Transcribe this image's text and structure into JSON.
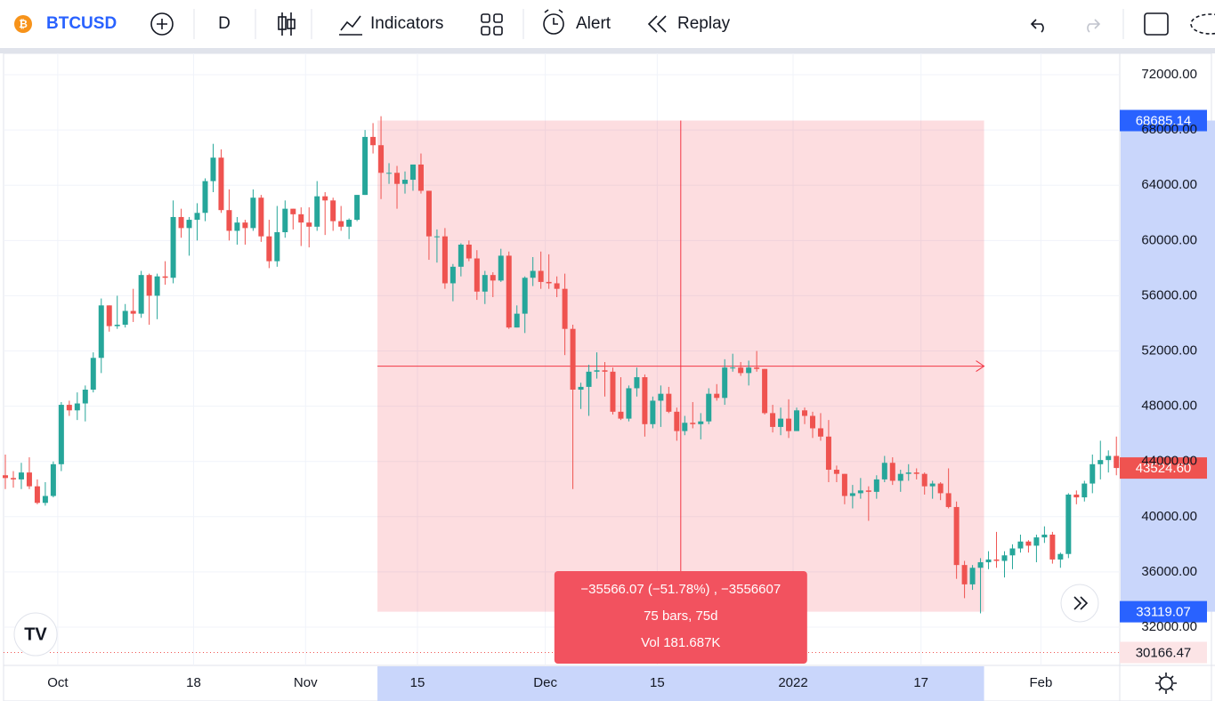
{
  "toolbar": {
    "symbol": "BTCUSD",
    "interval": "D",
    "indicators": "Indicators",
    "alert": "Alert",
    "replay": "Replay"
  },
  "chart_data": {
    "type": "candlestick",
    "open": [
      43000,
      42800,
      42700,
      43200,
      42200,
      41000,
      41500,
      43800,
      48100,
      47700,
      48200,
      49200,
      51500,
      55300,
      53800,
      53900,
      54900,
      54700,
      57500,
      56000,
      57400,
      57300,
      61700,
      60900,
      61500,
      62000,
      64300,
      66000,
      62200,
      60700,
      61300,
      60900,
      63100,
      60300,
      58500,
      60600,
      62300,
      61900,
      61300,
      61000,
      63200,
      62900,
      61400,
      61000,
      61500,
      63300,
      67500,
      66900,
      64900,
      64900,
      64100,
      64400,
      65500,
      63600,
      60300,
      60300,
      56900,
      58100,
      59700,
      58700,
      56300,
      57500,
      57100,
      58900,
      53700,
      54700,
      57300,
      57800,
      57000,
      56900,
      56500,
      53600,
      49200,
      49400,
      50500,
      50600,
      50500,
      47600,
      47100,
      49300,
      50100,
      46700,
      48400,
      48900,
      47600,
      46200,
      46800,
      46700,
      46900,
      48900,
      48600,
      50800,
      50800,
      50400,
      50800,
      50700,
      47500,
      46500,
      47100,
      46200,
      47700,
      47300,
      46400,
      45800,
      43400,
      43100,
      41500,
      41700,
      41900,
      41800,
      42700,
      43900,
      42600,
      43100,
      43200,
      43100,
      42200,
      42400,
      41700,
      40700,
      36500,
      35100,
      36300,
      36700,
      36900,
      36800,
      37200,
      37700,
      38200,
      37900,
      38500,
      38700,
      36900,
      37300,
      41600,
      41400,
      42400,
      43800,
      44100,
      44400
    ],
    "high": [
      44500,
      43300,
      43900,
      44300,
      42700,
      42500,
      44000,
      48300,
      48400,
      49000,
      49500,
      51900,
      55800,
      55300,
      56000,
      55400,
      56500,
      57800,
      57600,
      57600,
      58500,
      62900,
      62300,
      61700,
      62700,
      64500,
      67000,
      66600,
      63700,
      61700,
      61500,
      63700,
      63300,
      61500,
      62500,
      62900,
      62300,
      62400,
      62400,
      64300,
      63500,
      63100,
      62500,
      61600,
      63300,
      68000,
      68500,
      69000,
      65600,
      65400,
      65000,
      65500,
      66300,
      63600,
      60800,
      60900,
      58300,
      59800,
      60000,
      59300,
      57800,
      57700,
      59400,
      59200,
      55300,
      57400,
      58800,
      59200,
      59000,
      57400,
      57600,
      53900,
      49700,
      51000,
      51900,
      51200,
      50800,
      50100,
      49500,
      50800,
      50300,
      48700,
      49500,
      49400,
      47900,
      47300,
      48300,
      47500,
      49300,
      49600,
      51400,
      51800,
      51200,
      51300,
      52000,
      50700,
      48100,
      47900,
      48500,
      47900,
      47900,
      47600,
      47500,
      47000,
      43700,
      43100,
      42300,
      42800,
      42200,
      43000,
      44400,
      44300,
      43400,
      43800,
      43500,
      43200,
      42600,
      42500,
      43500,
      41100,
      36800,
      36500,
      37000,
      37500,
      38900,
      37500,
      38000,
      38700,
      38300,
      38700,
      39300,
      38900,
      37400,
      41700,
      41900,
      42600,
      44500,
      45500,
      44800,
      45800
    ],
    "low": [
      42000,
      42100,
      42000,
      42000,
      40900,
      40800,
      41400,
      43300,
      47300,
      47000,
      46900,
      49000,
      50400,
      53400,
      53600,
      53700,
      54100,
      54400,
      53900,
      54300,
      56800,
      56900,
      60200,
      58900,
      60000,
      61400,
      63500,
      62000,
      60000,
      59700,
      59700,
      60700,
      59900,
      58000,
      58100,
      60200,
      60800,
      59600,
      59500,
      60700,
      60400,
      60700,
      60700,
      60100,
      61400,
      63300,
      66300,
      63000,
      64100,
      62300,
      63400,
      63600,
      63400,
      58600,
      58400,
      56500,
      55600,
      57400,
      58500,
      55700,
      55400,
      55900,
      57000,
      53600,
      53700,
      53300,
      56700,
      56500,
      56500,
      55900,
      51700,
      42000,
      47800,
      47300,
      50000,
      48700,
      47400,
      47000,
      46900,
      48700,
      45800,
      46400,
      46500,
      47500,
      45500,
      45900,
      46400,
      45600,
      46700,
      48400,
      48100,
      50500,
      50200,
      49500,
      50500,
      47400,
      46100,
      45900,
      45700,
      46200,
      46700,
      45700,
      45500,
      42500,
      42500,
      40900,
      40600,
      41300,
      39700,
      41300,
      42500,
      42300,
      41800,
      42600,
      42700,
      41600,
      41300,
      41200,
      40600,
      35500,
      34100,
      34700,
      33000,
      36200,
      36300,
      35600,
      36200,
      37400,
      37400,
      36700,
      38100,
      36600,
      36300,
      37000,
      40900,
      41100,
      41700,
      42700,
      43200,
      43000
    ],
    "close": [
      42800,
      42700,
      43200,
      42200,
      41000,
      41500,
      43800,
      48100,
      47700,
      48200,
      49200,
      51500,
      55300,
      53800,
      53900,
      54900,
      54700,
      57500,
      56000,
      57400,
      57300,
      61700,
      60900,
      61500,
      62000,
      64300,
      66000,
      62200,
      60700,
      61300,
      60900,
      63100,
      60300,
      58500,
      60600,
      62300,
      61900,
      61300,
      61000,
      63200,
      62900,
      61400,
      61000,
      61500,
      63300,
      67500,
      66900,
      64900,
      64900,
      64100,
      64400,
      65500,
      63600,
      60300,
      60300,
      56900,
      58100,
      59700,
      58700,
      56300,
      57500,
      57100,
      58900,
      53700,
      54700,
      57300,
      57800,
      57000,
      56900,
      56500,
      53600,
      49200,
      49400,
      50500,
      50600,
      50500,
      47600,
      47100,
      49300,
      50100,
      46700,
      48400,
      48900,
      47600,
      46200,
      46800,
      46700,
      46900,
      48900,
      48600,
      50800,
      50800,
      50400,
      50800,
      50700,
      47500,
      46500,
      47100,
      46200,
      47700,
      47300,
      46400,
      45800,
      43400,
      43100,
      41500,
      41700,
      41900,
      41800,
      42700,
      43900,
      42600,
      43100,
      43200,
      43100,
      42200,
      42400,
      41700,
      40700,
      36500,
      35100,
      36300,
      36700,
      36900,
      36800,
      37200,
      37700,
      38200,
      37900,
      38500,
      38700,
      36900,
      37300,
      41600,
      41400,
      42400,
      43800,
      44100,
      44400,
      43524.6
    ],
    "up_color": "#26a69a",
    "down_color": "#ef5350",
    "ylim": [
      29230,
      73550
    ],
    "yticks": [
      {
        "value": 32000,
        "label": "32000.00"
      },
      {
        "value": 36000,
        "label": "36000.00"
      },
      {
        "value": 40000,
        "label": "40000.00"
      },
      {
        "value": 44000,
        "label": "44000.00"
      },
      {
        "value": 48000,
        "label": "48000.00"
      },
      {
        "value": 52000,
        "label": "52000.00"
      },
      {
        "value": 56000,
        "label": "56000.00"
      },
      {
        "value": 60000,
        "label": "60000.00"
      },
      {
        "value": 64000,
        "label": "64000.00"
      },
      {
        "value": 68000,
        "label": "68000.00"
      },
      {
        "value": 72000,
        "label": "72000.00"
      }
    ],
    "xticks": [
      {
        "value": 7,
        "label": "Oct"
      },
      {
        "value": 24,
        "label": "18"
      },
      {
        "value": 38,
        "label": "Nov"
      },
      {
        "value": 52,
        "label": "15"
      },
      {
        "value": 68,
        "label": "Dec"
      },
      {
        "value": 82,
        "label": "15"
      },
      {
        "value": 99,
        "label": "2022"
      },
      {
        "value": 115,
        "label": "17"
      },
      {
        "value": 130,
        "label": "Feb"
      }
    ],
    "grid": true,
    "measure": {
      "start": 47,
      "end": 122,
      "top": 68685.14,
      "bottom": 33119.07,
      "summary": "−35566.07 (−51.78%) , −3556607",
      "bars": "75 bars, 75d",
      "volume": "Vol 181.687K"
    },
    "price_labels": [
      {
        "value": 68685.14,
        "label": "68685.14",
        "color": "#2962ff"
      },
      {
        "value": 43524.6,
        "label": "43524.60",
        "color": "#ef5350"
      },
      {
        "value": 33119.07,
        "label": "33119.07",
        "color": "#2962ff"
      },
      {
        "value": 30166.47,
        "label": "30166.47",
        "color": "#fce4e6"
      }
    ]
  }
}
